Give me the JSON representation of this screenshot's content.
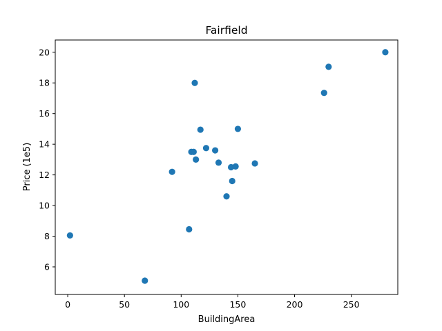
{
  "chart_data": {
    "type": "scatter",
    "title": "Fairfield",
    "xlabel": "BuildingArea",
    "ylabel": "Price (1e5)",
    "xlim": [
      -11,
      291
    ],
    "ylim": [
      4.2,
      20.8
    ],
    "xticks": [
      0,
      50,
      100,
      150,
      200,
      250
    ],
    "yticks": [
      6,
      8,
      10,
      12,
      14,
      16,
      18,
      20
    ],
    "grid": false,
    "legend": "none",
    "point_color": "#1f77b4",
    "points": [
      {
        "x": 2,
        "y": 8.05
      },
      {
        "x": 68,
        "y": 5.1
      },
      {
        "x": 92,
        "y": 12.2
      },
      {
        "x": 107,
        "y": 8.45
      },
      {
        "x": 109,
        "y": 13.5
      },
      {
        "x": 111,
        "y": 13.5
      },
      {
        "x": 112,
        "y": 18.0
      },
      {
        "x": 113,
        "y": 13.0
      },
      {
        "x": 117,
        "y": 14.95
      },
      {
        "x": 122,
        "y": 13.75
      },
      {
        "x": 130,
        "y": 13.6
      },
      {
        "x": 133,
        "y": 12.8
      },
      {
        "x": 140,
        "y": 10.6
      },
      {
        "x": 144,
        "y": 12.5
      },
      {
        "x": 145,
        "y": 11.6
      },
      {
        "x": 148,
        "y": 12.55
      },
      {
        "x": 150,
        "y": 15.0
      },
      {
        "x": 165,
        "y": 12.75
      },
      {
        "x": 226,
        "y": 17.35
      },
      {
        "x": 230,
        "y": 19.05
      },
      {
        "x": 280,
        "y": 20.0
      }
    ]
  }
}
